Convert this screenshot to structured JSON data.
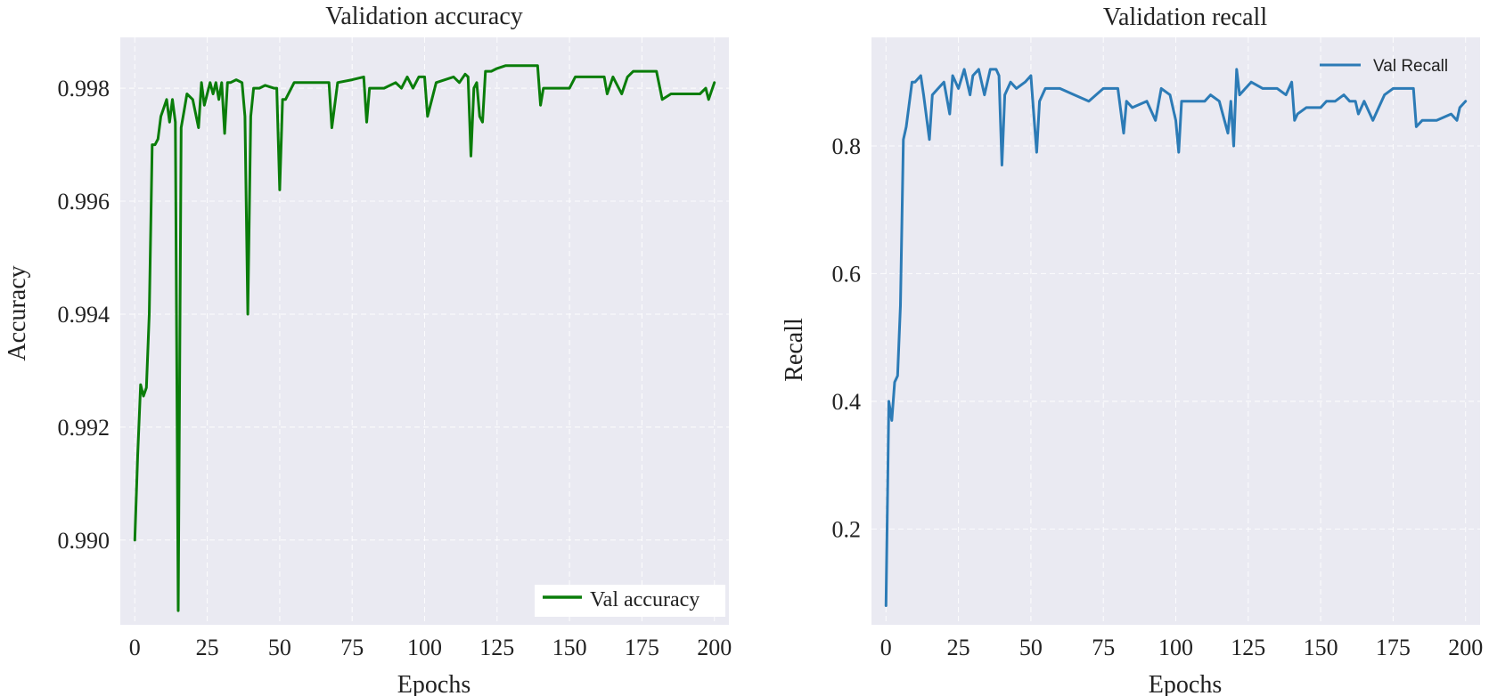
{
  "chart_data": [
    {
      "type": "line",
      "title": "Validation accuracy",
      "xlabel": "Epochs",
      "ylabel": "Accuracy",
      "xlim": [
        -5,
        205
      ],
      "ylim": [
        0.9885,
        0.9989
      ],
      "xticks": [
        0,
        25,
        50,
        75,
        100,
        125,
        150,
        175,
        200
      ],
      "yticks": [
        0.99,
        0.992,
        0.994,
        0.996,
        0.998
      ],
      "ytick_labels": [
        "0.990",
        "0.992",
        "0.994",
        "0.996",
        "0.998"
      ],
      "grid": true,
      "legend_position": "bottom-right",
      "series": [
        {
          "name": "Val accuracy",
          "color": "#0a7d0a",
          "x": [
            0,
            1,
            2,
            3,
            4,
            5,
            6,
            7,
            8,
            9,
            10,
            11,
            12,
            13,
            14,
            15,
            16,
            17,
            18,
            20,
            22,
            23,
            24,
            26,
            27,
            28,
            29,
            30,
            31,
            32,
            33,
            35,
            37,
            38,
            39,
            40,
            41,
            43,
            45,
            48,
            49,
            50,
            51,
            52,
            55,
            60,
            65,
            67,
            68,
            70,
            75,
            79,
            80,
            81,
            83,
            86,
            90,
            92,
            94,
            96,
            98,
            100,
            101,
            104,
            110,
            112,
            114,
            115,
            116,
            117,
            118,
            119,
            120,
            121,
            123,
            125,
            128,
            130,
            133,
            135,
            137,
            139,
            140,
            141,
            144,
            147,
            150,
            152,
            155,
            158,
            160,
            162,
            163,
            165,
            168,
            170,
            172,
            175,
            177,
            180,
            182,
            185,
            190,
            195,
            197,
            198,
            200
          ],
          "y": [
            0.99,
            0.9915,
            0.99275,
            0.99255,
            0.9927,
            0.994,
            0.997,
            0.997,
            0.9971,
            0.9975,
            0.99765,
            0.9978,
            0.9974,
            0.9978,
            0.9974,
            0.98875,
            0.9973,
            0.9976,
            0.9979,
            0.9978,
            0.9973,
            0.9981,
            0.9977,
            0.9981,
            0.9979,
            0.9981,
            0.9978,
            0.9981,
            0.9972,
            0.9981,
            0.9981,
            0.99815,
            0.9981,
            0.9975,
            0.994,
            0.9975,
            0.998,
            0.998,
            0.99805,
            0.998,
            0.998,
            0.9962,
            0.9978,
            0.9978,
            0.9981,
            0.9981,
            0.9981,
            0.9981,
            0.9973,
            0.9981,
            0.99815,
            0.9982,
            0.9974,
            0.998,
            0.998,
            0.998,
            0.9981,
            0.998,
            0.9982,
            0.998,
            0.9982,
            0.9982,
            0.9975,
            0.9981,
            0.9982,
            0.9981,
            0.99825,
            0.9982,
            0.9968,
            0.998,
            0.9981,
            0.9975,
            0.9974,
            0.9983,
            0.9983,
            0.99835,
            0.9984,
            0.9984,
            0.9984,
            0.9984,
            0.9984,
            0.9984,
            0.9977,
            0.998,
            0.998,
            0.998,
            0.998,
            0.9982,
            0.9982,
            0.9982,
            0.9982,
            0.9982,
            0.9979,
            0.9982,
            0.9979,
            0.9982,
            0.9983,
            0.9983,
            0.9983,
            0.9983,
            0.9978,
            0.9979,
            0.9979,
            0.9979,
            0.998,
            0.9978,
            0.9981
          ]
        }
      ]
    },
    {
      "type": "line",
      "title": "Validation recall",
      "xlabel": "Epochs",
      "ylabel": "Recall",
      "xlim": [
        -5,
        205
      ],
      "ylim": [
        0.05,
        0.97
      ],
      "xticks": [
        0,
        25,
        50,
        75,
        100,
        125,
        150,
        175,
        200
      ],
      "yticks": [
        0.2,
        0.4,
        0.6,
        0.8
      ],
      "ytick_labels": [
        "0.2",
        "0.4",
        "0.6",
        "0.8"
      ],
      "grid": true,
      "legend_position": "top-right",
      "series": [
        {
          "name": "Val Recall",
          "color": "#2c7bb6",
          "x": [
            0,
            1,
            2,
            3,
            4,
            5,
            6,
            7,
            9,
            10,
            12,
            13,
            15,
            16,
            18,
            20,
            22,
            23,
            25,
            27,
            29,
            30,
            32,
            34,
            36,
            38,
            39,
            40,
            41,
            43,
            45,
            48,
            50,
            51,
            52,
            53,
            55,
            60,
            65,
            70,
            75,
            80,
            82,
            83,
            85,
            90,
            93,
            95,
            98,
            100,
            101,
            102,
            104,
            110,
            112,
            115,
            118,
            119,
            120,
            121,
            122,
            124,
            126,
            130,
            135,
            138,
            140,
            141,
            142,
            145,
            148,
            150,
            152,
            155,
            158,
            160,
            162,
            163,
            165,
            168,
            170,
            172,
            175,
            178,
            182,
            183,
            185,
            190,
            195,
            197,
            198,
            200
          ],
          "y": [
            0.08,
            0.4,
            0.37,
            0.43,
            0.44,
            0.55,
            0.81,
            0.83,
            0.9,
            0.9,
            0.91,
            0.88,
            0.81,
            0.88,
            0.89,
            0.9,
            0.85,
            0.91,
            0.89,
            0.92,
            0.88,
            0.91,
            0.92,
            0.88,
            0.92,
            0.92,
            0.91,
            0.77,
            0.88,
            0.9,
            0.89,
            0.9,
            0.91,
            0.85,
            0.79,
            0.87,
            0.89,
            0.89,
            0.88,
            0.87,
            0.89,
            0.89,
            0.82,
            0.87,
            0.86,
            0.87,
            0.84,
            0.89,
            0.88,
            0.84,
            0.79,
            0.87,
            0.87,
            0.87,
            0.88,
            0.87,
            0.82,
            0.87,
            0.8,
            0.92,
            0.88,
            0.89,
            0.9,
            0.89,
            0.89,
            0.88,
            0.9,
            0.84,
            0.85,
            0.86,
            0.86,
            0.86,
            0.87,
            0.87,
            0.88,
            0.87,
            0.87,
            0.85,
            0.87,
            0.84,
            0.86,
            0.88,
            0.89,
            0.89,
            0.89,
            0.83,
            0.84,
            0.84,
            0.85,
            0.84,
            0.86,
            0.87
          ]
        }
      ]
    }
  ]
}
